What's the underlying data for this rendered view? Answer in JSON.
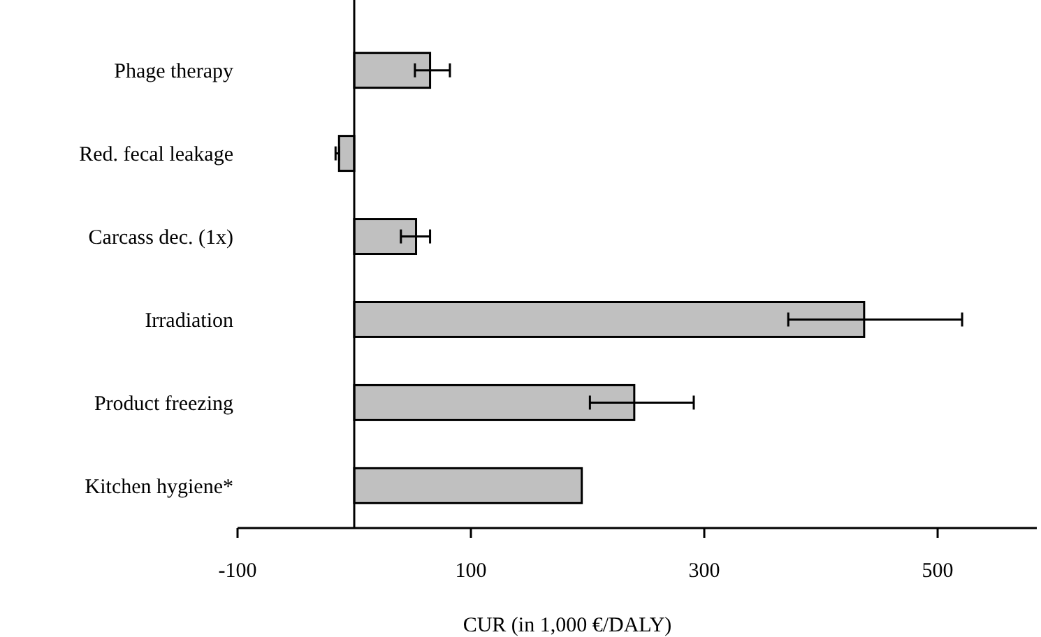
{
  "chart_data": {
    "type": "bar",
    "orientation": "horizontal",
    "xlabel": "CUR (in 1,000 €/DALY)",
    "categories": [
      "Phage therapy",
      "Red. fecal leakage",
      "Carcass dec. (1x)",
      "Irradiation",
      "Product freezing",
      "Kitchen hygiene*"
    ],
    "values": [
      65,
      -13,
      53,
      437,
      240,
      195
    ],
    "errors": [
      [
        52,
        82
      ],
      [
        -16,
        -13
      ],
      [
        40,
        65
      ],
      [
        372,
        521
      ],
      [
        202,
        291
      ],
      null
    ],
    "color": "#c0c0c0",
    "xlim": [
      -100,
      585
    ],
    "xticks": [
      -100,
      100,
      300,
      500
    ],
    "grid": false
  }
}
